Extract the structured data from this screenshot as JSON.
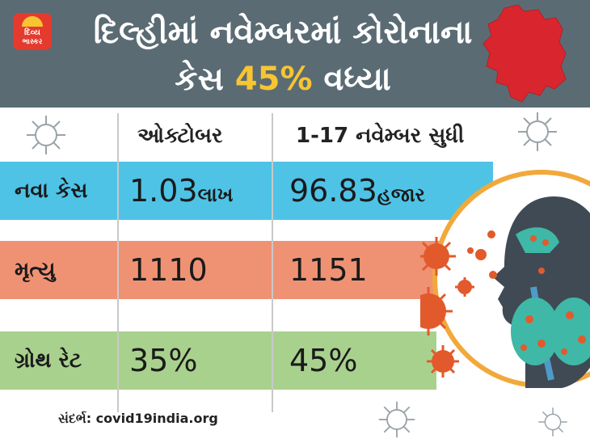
{
  "brand": {
    "logo_line1": "દિવ્ય",
    "logo_line2": "ભાસ્કર"
  },
  "headline": {
    "line1": "દિલ્હીમાં નવેમ્બરમાં કોરોનાના",
    "line2_prefix": "કેસ ",
    "line2_highlight": "45%",
    "line2_suffix": " વધ્યા"
  },
  "table": {
    "columns": [
      "ઓક્ટોબર",
      "1-17  નવેમ્બર સુધી"
    ],
    "rows": [
      {
        "label": "નવા કેસ",
        "oct_value": "1.03",
        "oct_unit": "લાખ",
        "nov_value": "96.83",
        "nov_unit": "હજાર"
      },
      {
        "label": "મૃત્યુ",
        "oct_value": "1110",
        "oct_unit": "",
        "nov_value": "1151",
        "nov_unit": ""
      },
      {
        "label": "ગ્રોથ રેટ",
        "oct_value": "35%",
        "oct_unit": "",
        "nov_value": "45%",
        "nov_unit": ""
      }
    ]
  },
  "source": "સંદર્ભ: covid19india.org",
  "colors": {
    "header": "#5a6b74",
    "accent": "#f7c531",
    "row1": "#4ec3e6",
    "row2": "#ef9274",
    "row3": "#a9d18e",
    "map": "#d9262e"
  },
  "icons": [
    "virus-icon",
    "delhi-map-icon",
    "lungs-illustration"
  ]
}
